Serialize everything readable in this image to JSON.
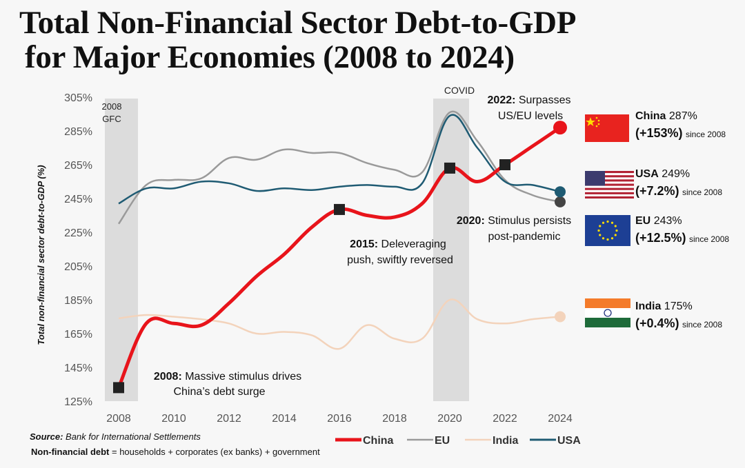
{
  "title": {
    "line1": "Total Non-Financial Sector Debt-to-GDP",
    "line2": "for Major Economies (2008 to 2024)"
  },
  "colors": {
    "China": "#e8141b",
    "EU": "#9a9a9a",
    "India": "#f3d3bb",
    "USA": "#1f5b73",
    "marker": "#222222",
    "band": "#dcdcdc"
  },
  "chart_data": {
    "type": "line",
    "title": "Total Non-Financial Sector Debt-to-GDP for Major Economies (2008 to 2024)",
    "xlabel": "",
    "ylabel": "Total non-financial sector debt-to-GDP (%)",
    "x": [
      2008,
      2009,
      2010,
      2011,
      2012,
      2013,
      2014,
      2015,
      2016,
      2017,
      2018,
      2019,
      2020,
      2021,
      2022,
      2023,
      2024
    ],
    "xlim": [
      2008,
      2024
    ],
    "ylim": [
      125,
      305
    ],
    "xticks": [
      "2008",
      "2010",
      "2012",
      "2014",
      "2016",
      "2018",
      "2020",
      "2022",
      "2024"
    ],
    "yticks": [
      "305%",
      "285%",
      "265%",
      "245%",
      "225%",
      "205%",
      "185%",
      "165%",
      "145%",
      "125%"
    ],
    "series": [
      {
        "name": "China",
        "values": [
          133,
          171,
          171,
          170,
          183,
          199,
          212,
          228,
          238.5,
          235,
          234,
          242,
          263,
          255,
          265,
          276,
          287
        ]
      },
      {
        "name": "EU",
        "values": [
          230,
          253,
          256,
          257,
          269,
          268,
          274,
          272,
          272,
          266,
          262,
          260.5,
          296,
          279,
          256,
          247,
          243
        ]
      },
      {
        "name": "India",
        "values": [
          174,
          176,
          175,
          173.5,
          171,
          165,
          166,
          164,
          156,
          170,
          162,
          162,
          185,
          173.5,
          171,
          173.5,
          175
        ]
      },
      {
        "name": "USA",
        "values": [
          242,
          251,
          251,
          255,
          254,
          249.5,
          251,
          250,
          252,
          253,
          252,
          254,
          294,
          275,
          255,
          253,
          249
        ]
      }
    ],
    "bands": [
      {
        "label1": "2008",
        "label2": "GFC",
        "from": 2007.5,
        "to": 2008.7
      },
      {
        "label1": "COVID",
        "from": 2019.4,
        "to": 2020.7
      }
    ],
    "markers": [
      2008,
      2016,
      2020,
      2022
    ],
    "legend": [
      "China",
      "EU",
      "India",
      "USA"
    ],
    "legend_position": "bottom-right",
    "annotations": {
      "a2008": {
        "bold": "2008:",
        "text": " Massive stimulus drives",
        "line2": "China’s debt surge"
      },
      "a2015": {
        "bold": "2015:",
        "text": " Deleveraging",
        "line2": "push, swiftly reversed"
      },
      "a2020": {
        "bold": "2020:",
        "text": " Stimulus persists",
        "line2": "post-pandemic"
      },
      "a2022": {
        "bold": "2022:",
        "text": " Surpasses",
        "line2": "US/EU levels"
      }
    }
  },
  "side": [
    {
      "name": "China",
      "value": "287%",
      "change": "(+153%)",
      "since": "since 2008",
      "flag": "china-flag"
    },
    {
      "name": "USA",
      "value": "249%",
      "change": "(+7.2%)",
      "since": "since 2008",
      "flag": "usa-flag"
    },
    {
      "name": "EU",
      "value": "243%",
      "change": "(+12.5%)",
      "since": "since 2008",
      "flag": "eu-flag"
    },
    {
      "name": "India",
      "value": "175%",
      "change": "(+0.4%)",
      "since": "since 2008",
      "flag": "india-flag"
    }
  ],
  "footer": {
    "source_label": "Source:",
    "source": " Bank for International Settlements",
    "def_label": "Non-financial debt",
    "def": " = households + corporates (ex banks) + government"
  }
}
